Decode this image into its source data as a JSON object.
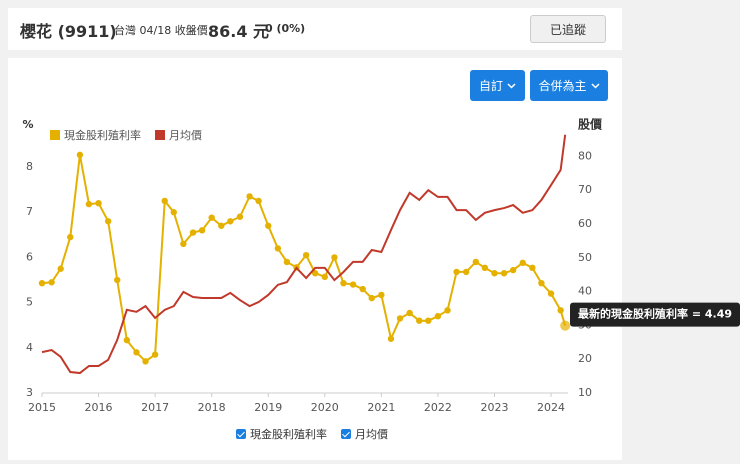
{
  "header": {
    "title": "櫻花 (9911)",
    "market_date": "台灣 04/18 收盤價",
    "price": "86.4 元",
    "change": "0 (0%)",
    "follow_button": "已追蹤"
  },
  "controls": [
    "自訂",
    "合併為主"
  ],
  "chart_data": {
    "type": "line",
    "y_label": "%",
    "y2_label": "股價",
    "annotation": "最新的現金股利殖利率 = 4.49",
    "xlim": [
      2015,
      2024.3
    ],
    "xticks": [
      2015,
      2016,
      2017,
      2018,
      2019,
      2020,
      2021,
      2022,
      2023,
      2024
    ],
    "ylim": [
      3,
      8.76
    ],
    "yticks": [
      3,
      4,
      5,
      6,
      7,
      8
    ],
    "y2lim": [
      10,
      87
    ],
    "y2ticks": [
      10,
      20,
      30,
      40,
      50,
      60,
      70,
      80
    ],
    "grid": false,
    "x": [
      2015.0,
      2015.17,
      2015.33,
      2015.5,
      2015.67,
      2015.83,
      2016.0,
      2016.17,
      2016.33,
      2016.5,
      2016.67,
      2016.83,
      2017.0,
      2017.17,
      2017.33,
      2017.5,
      2017.67,
      2017.83,
      2018.0,
      2018.17,
      2018.33,
      2018.5,
      2018.67,
      2018.83,
      2019.0,
      2019.17,
      2019.33,
      2019.5,
      2019.67,
      2019.83,
      2020.0,
      2020.17,
      2020.33,
      2020.5,
      2020.67,
      2020.83,
      2021.0,
      2021.17,
      2021.33,
      2021.5,
      2021.67,
      2021.83,
      2022.0,
      2022.17,
      2022.33,
      2022.5,
      2022.67,
      2022.83,
      2023.0,
      2023.17,
      2023.33,
      2023.5,
      2023.67,
      2023.83,
      2024.0,
      2024.17,
      2024.25
    ],
    "series": [
      {
        "name": "現金股利殖利率",
        "color": "#e5b100",
        "axis": "y",
        "markers": true,
        "values": [
          5.43,
          5.45,
          5.75,
          6.45,
          8.27,
          7.18,
          7.2,
          6.8,
          5.5,
          4.17,
          3.9,
          3.7,
          3.85,
          7.25,
          7.0,
          6.3,
          6.55,
          6.6,
          6.88,
          6.7,
          6.8,
          6.9,
          7.35,
          7.25,
          6.7,
          6.2,
          5.9,
          5.78,
          6.05,
          5.65,
          5.57,
          6.0,
          5.43,
          5.4,
          5.3,
          5.1,
          5.17,
          4.2,
          4.65,
          4.77,
          4.6,
          4.6,
          4.7,
          4.83,
          5.68,
          5.68,
          5.9,
          5.77,
          5.65,
          5.65,
          5.72,
          5.88,
          5.77,
          5.43,
          5.2,
          4.83,
          4.49
        ]
      },
      {
        "name": "月均價",
        "color": "#c0392b",
        "axis": "y2",
        "markers": false,
        "values": [
          22.1,
          22.7,
          20.7,
          16.2,
          15.9,
          18,
          18,
          19.8,
          25.7,
          34.6,
          34,
          35.7,
          32.2,
          34.6,
          35.7,
          39.9,
          38.4,
          38.1,
          38.1,
          38.1,
          39.6,
          37.5,
          35.7,
          36.9,
          39,
          42,
          42.8,
          47,
          44,
          47,
          47,
          43.4,
          45.8,
          48.8,
          48.8,
          52.3,
          51.7,
          58.2,
          64.1,
          69.2,
          67.1,
          70,
          68,
          68,
          64.1,
          64.1,
          61.2,
          63.3,
          64.1,
          64.7,
          65.6,
          63.3,
          64.1,
          67.1,
          71.5,
          76,
          86.4
        ]
      }
    ]
  }
}
